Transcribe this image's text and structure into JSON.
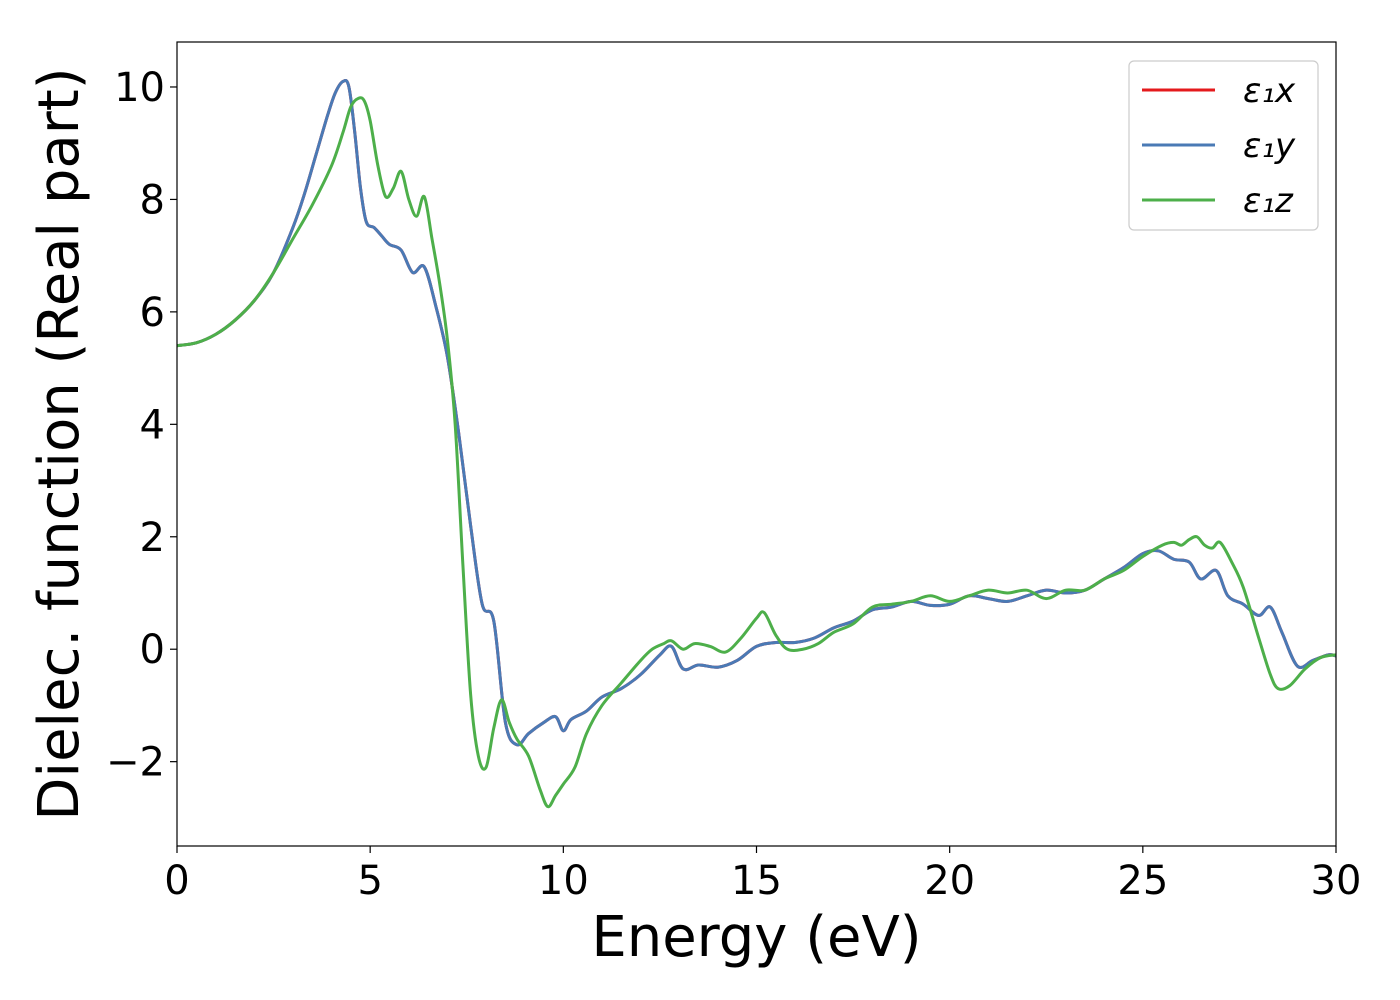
{
  "chart_data": {
    "type": "line",
    "title": "",
    "xlabel": "Energy (eV)",
    "ylabel": "Dielec. function (Real part)",
    "xlim": [
      0,
      30
    ],
    "ylim": [
      -3.5,
      10.8
    ],
    "xticks": [
      0,
      5,
      10,
      15,
      20,
      25,
      30
    ],
    "xtick_labels": [
      "0",
      "5",
      "10",
      "15",
      "20",
      "25",
      "30"
    ],
    "yticks": [
      -2,
      0,
      2,
      4,
      6,
      8,
      10
    ],
    "ytick_labels": [
      "−2",
      "0",
      "2",
      "4",
      "6",
      "8",
      "10"
    ],
    "grid": false,
    "legend_position": "top-right",
    "series": [
      {
        "name": "ε₁x",
        "color": "#e41a1c",
        "x": [
          0,
          0.5,
          1,
          1.5,
          2,
          2.5,
          3,
          3.3,
          3.6,
          3.9,
          4.1,
          4.3,
          4.45,
          4.6,
          4.75,
          4.9,
          5.1,
          5.3,
          5.5,
          5.8,
          6.1,
          6.4,
          6.7,
          7.0,
          7.3,
          7.6,
          7.9,
          8.2,
          8.5,
          8.8,
          9.1,
          9.5,
          9.8,
          10.0,
          10.2,
          10.6,
          11.0,
          11.5,
          12.0,
          12.5,
          12.8,
          13.1,
          13.5,
          14.0,
          14.5,
          15.0,
          15.5,
          16.0,
          16.5,
          17.0,
          17.5,
          18.0,
          18.5,
          19.0,
          19.5,
          20.0,
          20.5,
          21.0,
          21.5,
          22.0,
          22.5,
          23.0,
          23.5,
          24.0,
          24.5,
          25.0,
          25.4,
          25.8,
          26.2,
          26.5,
          26.9,
          27.2,
          27.6,
          28.0,
          28.3,
          28.6,
          29.0,
          29.4,
          29.8,
          30.0
        ],
        "y": [
          5.4,
          5.45,
          5.6,
          5.85,
          6.2,
          6.7,
          7.5,
          8.1,
          8.8,
          9.5,
          9.9,
          10.1,
          10.0,
          9.2,
          8.2,
          7.6,
          7.5,
          7.35,
          7.2,
          7.1,
          6.7,
          6.8,
          6.1,
          5.2,
          3.8,
          2.2,
          0.8,
          0.5,
          -1.3,
          -1.7,
          -1.5,
          -1.3,
          -1.2,
          -1.45,
          -1.25,
          -1.1,
          -0.85,
          -0.7,
          -0.45,
          -0.1,
          0.05,
          -0.35,
          -0.28,
          -0.32,
          -0.2,
          0.05,
          0.12,
          0.12,
          0.2,
          0.38,
          0.5,
          0.7,
          0.75,
          0.85,
          0.78,
          0.8,
          0.95,
          0.9,
          0.85,
          0.95,
          1.05,
          1.0,
          1.05,
          1.25,
          1.45,
          1.7,
          1.75,
          1.6,
          1.55,
          1.25,
          1.4,
          0.95,
          0.8,
          0.6,
          0.75,
          0.3,
          -0.3,
          -0.2,
          -0.1,
          -0.12
        ]
      },
      {
        "name": "ε₁y",
        "color": "#4a7ab5",
        "x": [
          0,
          0.5,
          1,
          1.5,
          2,
          2.5,
          3,
          3.3,
          3.6,
          3.9,
          4.1,
          4.3,
          4.45,
          4.6,
          4.75,
          4.9,
          5.1,
          5.3,
          5.5,
          5.8,
          6.1,
          6.4,
          6.7,
          7.0,
          7.3,
          7.6,
          7.9,
          8.2,
          8.5,
          8.8,
          9.1,
          9.5,
          9.8,
          10.0,
          10.2,
          10.6,
          11.0,
          11.5,
          12.0,
          12.5,
          12.8,
          13.1,
          13.5,
          14.0,
          14.5,
          15.0,
          15.5,
          16.0,
          16.5,
          17.0,
          17.5,
          18.0,
          18.5,
          19.0,
          19.5,
          20.0,
          20.5,
          21.0,
          21.5,
          22.0,
          22.5,
          23.0,
          23.5,
          24.0,
          24.5,
          25.0,
          25.4,
          25.8,
          26.2,
          26.5,
          26.9,
          27.2,
          27.6,
          28.0,
          28.3,
          28.6,
          29.0,
          29.4,
          29.8,
          30.0
        ],
        "y": [
          5.4,
          5.45,
          5.6,
          5.85,
          6.2,
          6.7,
          7.5,
          8.1,
          8.8,
          9.5,
          9.9,
          10.1,
          10.0,
          9.2,
          8.2,
          7.6,
          7.5,
          7.35,
          7.2,
          7.1,
          6.7,
          6.8,
          6.1,
          5.2,
          3.8,
          2.2,
          0.8,
          0.5,
          -1.3,
          -1.7,
          -1.5,
          -1.3,
          -1.2,
          -1.45,
          -1.25,
          -1.1,
          -0.85,
          -0.7,
          -0.45,
          -0.1,
          0.05,
          -0.35,
          -0.28,
          -0.32,
          -0.2,
          0.05,
          0.12,
          0.12,
          0.2,
          0.38,
          0.5,
          0.7,
          0.75,
          0.85,
          0.78,
          0.8,
          0.95,
          0.9,
          0.85,
          0.95,
          1.05,
          1.0,
          1.05,
          1.25,
          1.45,
          1.7,
          1.75,
          1.6,
          1.55,
          1.25,
          1.4,
          0.95,
          0.8,
          0.6,
          0.75,
          0.3,
          -0.3,
          -0.2,
          -0.1,
          -0.12
        ]
      },
      {
        "name": "ε₁z",
        "color": "#4daf4a",
        "x": [
          0,
          0.5,
          1,
          1.5,
          2,
          2.5,
          3,
          3.5,
          4.0,
          4.3,
          4.5,
          4.7,
          4.85,
          5.0,
          5.2,
          5.4,
          5.6,
          5.8,
          6.0,
          6.2,
          6.4,
          6.6,
          6.8,
          7.0,
          7.2,
          7.4,
          7.6,
          7.8,
          8.0,
          8.2,
          8.4,
          8.6,
          8.8,
          9.1,
          9.4,
          9.6,
          9.8,
          10.0,
          10.3,
          10.6,
          11.0,
          11.5,
          12.0,
          12.3,
          12.6,
          12.8,
          13.1,
          13.4,
          13.8,
          14.2,
          14.6,
          15.0,
          15.2,
          15.5,
          15.8,
          16.2,
          16.6,
          17.0,
          17.5,
          18.0,
          18.5,
          19.0,
          19.5,
          20.0,
          20.5,
          21.0,
          21.5,
          22.0,
          22.5,
          23.0,
          23.5,
          24.0,
          24.5,
          25.0,
          25.5,
          25.8,
          26.0,
          26.2,
          26.4,
          26.6,
          26.8,
          27.0,
          27.3,
          27.6,
          28.0,
          28.3,
          28.5,
          28.8,
          29.2,
          29.6,
          30.0
        ],
        "y": [
          5.4,
          5.45,
          5.6,
          5.85,
          6.2,
          6.7,
          7.3,
          7.9,
          8.6,
          9.2,
          9.65,
          9.8,
          9.75,
          9.4,
          8.6,
          8.05,
          8.2,
          8.5,
          8.0,
          7.7,
          8.05,
          7.3,
          6.5,
          5.5,
          4.0,
          1.5,
          -0.8,
          -1.9,
          -2.1,
          -1.4,
          -0.9,
          -1.3,
          -1.6,
          -1.9,
          -2.5,
          -2.8,
          -2.6,
          -2.4,
          -2.1,
          -1.5,
          -1.0,
          -0.6,
          -0.2,
          0.0,
          0.1,
          0.15,
          0.0,
          0.1,
          0.05,
          -0.05,
          0.2,
          0.55,
          0.65,
          0.25,
          0.0,
          0.0,
          0.1,
          0.3,
          0.45,
          0.75,
          0.8,
          0.85,
          0.95,
          0.85,
          0.95,
          1.05,
          1.0,
          1.05,
          0.9,
          1.05,
          1.05,
          1.25,
          1.4,
          1.65,
          1.85,
          1.9,
          1.85,
          1.95,
          2.0,
          1.85,
          1.8,
          1.9,
          1.55,
          1.1,
          0.2,
          -0.45,
          -0.7,
          -0.65,
          -0.35,
          -0.15,
          -0.1
        ]
      }
    ]
  }
}
